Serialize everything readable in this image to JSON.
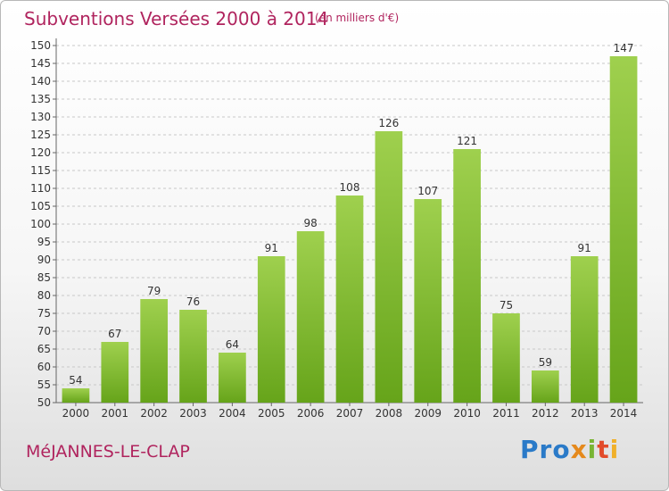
{
  "header": {
    "title": "Subventions Versées 2000 à 2014",
    "subtitle": "(en milliers d'€)"
  },
  "footer": {
    "place": "MéJANNES-LE-CLAP",
    "logo": [
      "Pro",
      "x",
      "i",
      "t",
      "i"
    ]
  },
  "colors": {
    "bar_top": "#9fd04e",
    "bar_bottom": "#66a41a",
    "title": "#b0245e"
  },
  "chart_data": {
    "type": "bar",
    "title": "Subventions Versées 2000 à 2014",
    "subtitle": "(en milliers d'€)",
    "categories": [
      "2000",
      "2001",
      "2002",
      "2003",
      "2004",
      "2005",
      "2006",
      "2007",
      "2008",
      "2009",
      "2010",
      "2011",
      "2012",
      "2013",
      "2014"
    ],
    "values": [
      54,
      67,
      79,
      76,
      64,
      91,
      98,
      108,
      126,
      107,
      121,
      75,
      59,
      91,
      147
    ],
    "ylim": [
      50,
      150
    ],
    "yticks": [
      50,
      55,
      60,
      65,
      70,
      75,
      80,
      85,
      90,
      95,
      100,
      105,
      110,
      115,
      120,
      125,
      130,
      135,
      140,
      145,
      150
    ],
    "grid": true,
    "data_labels": true
  }
}
